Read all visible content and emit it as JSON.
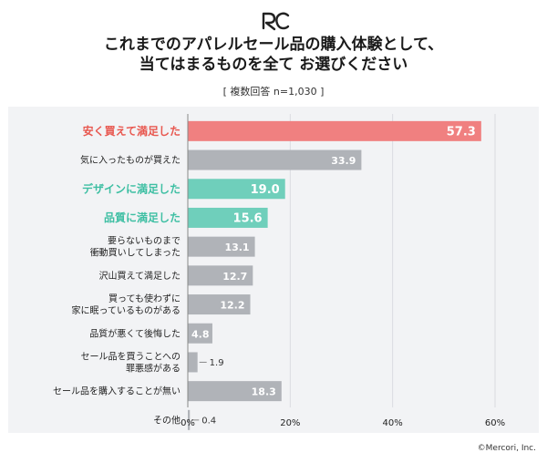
{
  "logo_text": "RC",
  "title_line1": "これまでのアパレルセール品の購入体験として、",
  "title_line2": "当てはまるものを全て お選びください",
  "subtitle": "[ 複数回答 n=1,030 ]",
  "credit": "©Mercori, Inc.",
  "colors": {
    "red": "#f08080",
    "teal": "#6fcfbb",
    "gray": "#b0b3b8",
    "red_text": "#e8574f",
    "teal_text": "#3ebfa3"
  },
  "chart_data": {
    "type": "bar",
    "orientation": "horizontal",
    "categories": [
      "安く買えて満足した",
      "気に入ったものが買えた",
      "デザインに満足した",
      "品質に満足した",
      "要らないものまで\n衝動買いしてしまった",
      "沢山買えて満足した",
      "買っても使わずに\n家に眠っているものがある",
      "品質が悪くて後悔した",
      "セール品を買うことへの\n罪悪感がある",
      "セール品を購入することが無い",
      "その他"
    ],
    "values": [
      57.3,
      33.9,
      19.0,
      15.6,
      13.1,
      12.7,
      12.2,
      4.8,
      1.9,
      18.3,
      0.4
    ],
    "value_labels": [
      "57.3",
      "33.9",
      "19.0",
      "15.6",
      "13.1",
      "12.7",
      "12.2",
      "4.8",
      "1.9",
      "18.3",
      "0.4"
    ],
    "highlight": [
      "red",
      "gray",
      "teal",
      "teal",
      "gray",
      "gray",
      "gray",
      "gray",
      "gray",
      "gray",
      "gray"
    ],
    "xlim": [
      0,
      60
    ],
    "xticks": [
      0,
      20,
      40,
      60
    ],
    "xtick_labels": [
      "0%",
      "20%",
      "40%",
      "60%"
    ],
    "grid": true
  }
}
